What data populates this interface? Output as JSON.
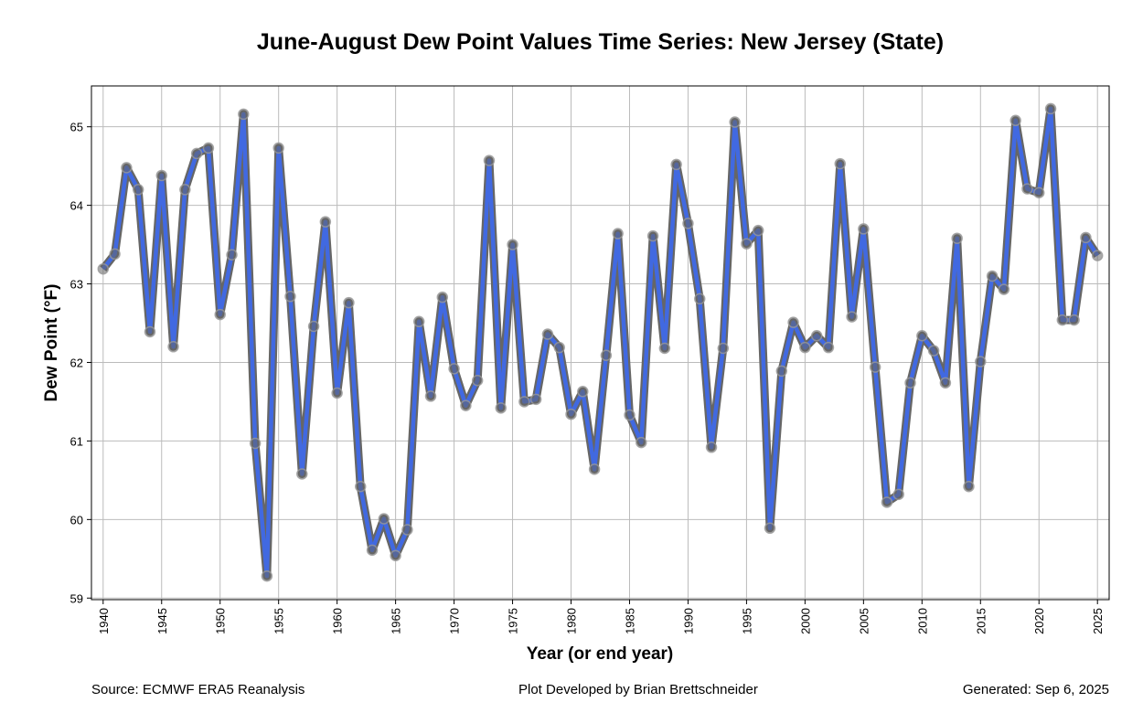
{
  "chart_data": {
    "type": "line",
    "title": "June-August Dew Point Values Time Series: New Jersey (State)",
    "xlabel": "Year (or end year)",
    "ylabel": "Dew Point (°F)",
    "xlim": [
      1939,
      2026
    ],
    "ylim": [
      58.98,
      65.52
    ],
    "grid": true,
    "x_ticks": [
      1940,
      1945,
      1950,
      1955,
      1960,
      1965,
      1970,
      1975,
      1980,
      1985,
      1990,
      1995,
      2000,
      2005,
      2010,
      2015,
      2020,
      2025
    ],
    "y_ticks": [
      59,
      60,
      61,
      62,
      63,
      64,
      65
    ],
    "colors": {
      "line": "#4169E1",
      "outline": "#666666",
      "marker": "#999999",
      "grid": "#bbbbbb"
    },
    "x": [
      1940,
      1941,
      1942,
      1943,
      1944,
      1945,
      1946,
      1947,
      1948,
      1949,
      1950,
      1951,
      1952,
      1953,
      1954,
      1955,
      1956,
      1957,
      1958,
      1959,
      1960,
      1961,
      1962,
      1963,
      1964,
      1965,
      1966,
      1967,
      1968,
      1969,
      1970,
      1971,
      1972,
      1973,
      1974,
      1975,
      1976,
      1977,
      1978,
      1979,
      1980,
      1981,
      1982,
      1983,
      1984,
      1985,
      1986,
      1987,
      1988,
      1989,
      1990,
      1991,
      1992,
      1993,
      1994,
      1995,
      1996,
      1997,
      1998,
      1999,
      2000,
      2001,
      2002,
      2003,
      2004,
      2005,
      2006,
      2007,
      2008,
      2009,
      2010,
      2011,
      2012,
      2013,
      2014,
      2015,
      2016,
      2017,
      2018,
      2019,
      2020,
      2021,
      2022,
      2023,
      2024,
      2025
    ],
    "values": [
      63.19,
      63.38,
      64.48,
      64.2,
      62.39,
      64.38,
      62.2,
      64.2,
      64.66,
      64.73,
      62.61,
      63.37,
      65.16,
      60.97,
      59.28,
      64.73,
      62.84,
      60.58,
      62.46,
      63.79,
      61.61,
      62.76,
      60.42,
      59.61,
      60.01,
      59.54,
      59.87,
      62.52,
      61.57,
      62.83,
      61.92,
      61.45,
      61.77,
      64.57,
      61.42,
      63.5,
      61.5,
      61.53,
      62.36,
      62.19,
      61.34,
      61.63,
      60.64,
      62.09,
      63.64,
      61.33,
      60.98,
      63.61,
      62.18,
      64.52,
      63.77,
      62.81,
      60.92,
      62.18,
      65.06,
      63.51,
      63.68,
      59.89,
      61.89,
      62.51,
      62.19,
      62.34,
      62.19,
      64.53,
      62.58,
      63.7,
      61.94,
      60.22,
      60.32,
      61.74,
      62.34,
      62.15,
      61.74,
      63.58,
      60.42,
      62.01,
      63.1,
      62.93,
      65.08,
      64.21,
      64.16,
      65.23,
      62.54,
      62.54,
      63.59,
      63.36
    ]
  },
  "footer": {
    "source": "Source: ECMWF ERA5 Reanalysis",
    "credit": "Plot Developed by Brian Brettschneider",
    "generated": "Generated: Sep 6, 2025"
  }
}
